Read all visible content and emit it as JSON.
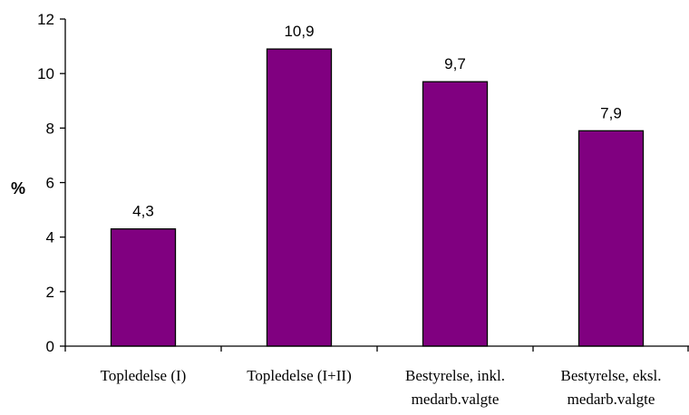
{
  "chart_data": {
    "type": "bar",
    "categories": [
      [
        "Topledelse (I)"
      ],
      [
        "Topledelse (I+II)"
      ],
      [
        "Bestyrelse, inkl.",
        "medarb.valgte"
      ],
      [
        "Bestyrelse, eksl.",
        "medarb.valgte"
      ]
    ],
    "values": [
      4.3,
      10.9,
      9.7,
      7.9
    ],
    "data_labels": [
      "4,3",
      "10,9",
      "9,7",
      "7,9"
    ],
    "title": "",
    "xlabel": "",
    "ylabel": "%",
    "ylim": [
      0,
      12
    ],
    "yticks": [
      0,
      2,
      4,
      6,
      8,
      10,
      12
    ],
    "grid": false,
    "bar_color": "#800080",
    "bar_edge_color": "#000000"
  }
}
